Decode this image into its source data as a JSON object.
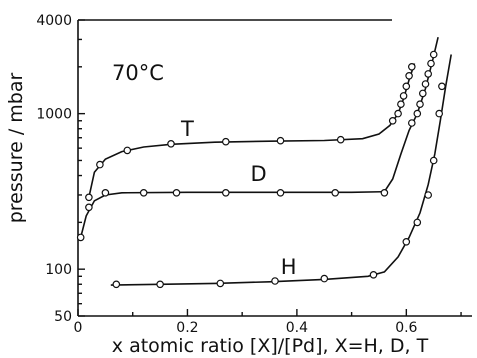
{
  "chart_data": {
    "type": "scatter",
    "title": "",
    "annotation": "70°C",
    "xlabel": "x  atomic ratio [X]/[Pd], X=H, D, T",
    "ylabel": "pressure / mbar",
    "xlim": [
      0,
      0.72
    ],
    "ylim": [
      50,
      4000
    ],
    "yscale": "log",
    "x_ticks": [
      {
        "value": 0,
        "label": "0"
      },
      {
        "value": 0.2,
        "label": "0.2"
      },
      {
        "value": 0.4,
        "label": "0.4"
      },
      {
        "value": 0.6,
        "label": "0.6"
      }
    ],
    "x_minor_ticks": [
      0.1,
      0.3,
      0.5,
      0.7
    ],
    "y_ticks": [
      {
        "value": 50,
        "label": "50"
      },
      {
        "value": 100,
        "label": "100"
      },
      {
        "value": 1000,
        "label": "1000"
      },
      {
        "value": 4000,
        "label": "4000"
      }
    ],
    "grid": false,
    "series": [
      {
        "name": "T",
        "points": [
          [
            0.02,
            290
          ],
          [
            0.04,
            470
          ],
          [
            0.09,
            580
          ],
          [
            0.17,
            640
          ],
          [
            0.27,
            660
          ],
          [
            0.37,
            670
          ],
          [
            0.48,
            680
          ],
          [
            0.575,
            900
          ],
          [
            0.585,
            1000
          ],
          [
            0.59,
            1150
          ],
          [
            0.595,
            1300
          ],
          [
            0.6,
            1500
          ],
          [
            0.605,
            1750
          ],
          [
            0.61,
            2000
          ]
        ],
        "curve": [
          [
            0.02,
            290
          ],
          [
            0.03,
            420
          ],
          [
            0.05,
            510
          ],
          [
            0.08,
            570
          ],
          [
            0.12,
            610
          ],
          [
            0.17,
            635
          ],
          [
            0.25,
            655
          ],
          [
            0.35,
            665
          ],
          [
            0.45,
            672
          ],
          [
            0.52,
            690
          ],
          [
            0.55,
            740
          ],
          [
            0.57,
            840
          ],
          [
            0.585,
            1000
          ],
          [
            0.595,
            1250
          ],
          [
            0.605,
            1650
          ],
          [
            0.615,
            2100
          ]
        ]
      },
      {
        "name": "D",
        "points": [
          [
            0.005,
            160
          ],
          [
            0.02,
            250
          ],
          [
            0.05,
            310
          ],
          [
            0.12,
            310
          ],
          [
            0.18,
            310
          ],
          [
            0.27,
            310
          ],
          [
            0.37,
            310
          ],
          [
            0.47,
            310
          ],
          [
            0.56,
            310
          ],
          [
            0.61,
            870
          ],
          [
            0.62,
            1000
          ],
          [
            0.625,
            1150
          ],
          [
            0.63,
            1350
          ],
          [
            0.635,
            1550
          ],
          [
            0.64,
            1800
          ],
          [
            0.645,
            2100
          ],
          [
            0.65,
            2400
          ]
        ],
        "curve": [
          [
            0.005,
            160
          ],
          [
            0.015,
            220
          ],
          [
            0.03,
            275
          ],
          [
            0.05,
            300
          ],
          [
            0.08,
            310
          ],
          [
            0.2,
            312
          ],
          [
            0.35,
            312
          ],
          [
            0.5,
            312
          ],
          [
            0.56,
            315
          ],
          [
            0.575,
            380
          ],
          [
            0.59,
            550
          ],
          [
            0.605,
            780
          ],
          [
            0.62,
            1000
          ],
          [
            0.635,
            1450
          ],
          [
            0.648,
            2200
          ],
          [
            0.658,
            3100
          ]
        ]
      },
      {
        "name": "H",
        "points": [
          [
            0.07,
            80
          ],
          [
            0.15,
            80
          ],
          [
            0.26,
            81
          ],
          [
            0.36,
            84
          ],
          [
            0.45,
            87
          ],
          [
            0.54,
            92
          ],
          [
            0.6,
            150
          ],
          [
            0.62,
            200
          ],
          [
            0.64,
            300
          ],
          [
            0.65,
            500
          ],
          [
            0.66,
            1000
          ],
          [
            0.665,
            1500
          ]
        ],
        "curve": [
          [
            0.06,
            79
          ],
          [
            0.15,
            80
          ],
          [
            0.25,
            81
          ],
          [
            0.35,
            83
          ],
          [
            0.45,
            86
          ],
          [
            0.53,
            90
          ],
          [
            0.56,
            96
          ],
          [
            0.585,
            120
          ],
          [
            0.605,
            160
          ],
          [
            0.625,
            230
          ],
          [
            0.64,
            350
          ],
          [
            0.652,
            550
          ],
          [
            0.662,
            900
          ],
          [
            0.672,
            1500
          ],
          [
            0.682,
            2400
          ]
        ]
      }
    ],
    "series_label_positions": [
      {
        "name": "T",
        "x": 0.2,
        "y": 720
      },
      {
        "name": "D",
        "x": 0.33,
        "y": 370
      },
      {
        "name": "H",
        "x": 0.385,
        "y": 93
      }
    ]
  }
}
